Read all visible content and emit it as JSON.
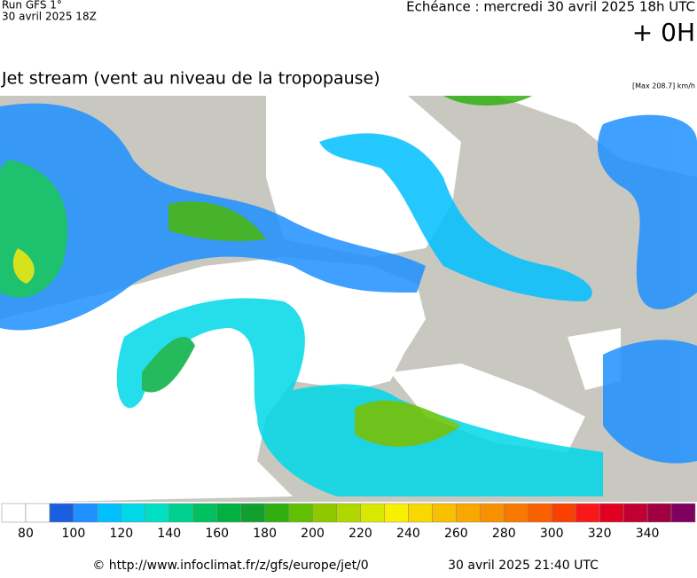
{
  "header": {
    "run": "Run GFS 1°",
    "run_date": "30 avril 2025 18Z",
    "forecast": "Echéance : mercredi 30 avril 2025 18h UTC",
    "offset": "+ 0H"
  },
  "title": "Jet stream (vent au niveau de la tropopause)",
  "max_label": "[Max 208.7] km/h",
  "scale": {
    "range": [
      70,
      360
    ],
    "colors": [
      "#ffffff",
      "#ffffff",
      "#1a5fe0",
      "#1e90ff",
      "#00c0ff",
      "#00d8e8",
      "#00e0c0",
      "#00d090",
      "#00c060",
      "#00b040",
      "#10a030",
      "#30b010",
      "#60c000",
      "#90c800",
      "#b0d800",
      "#d8e800",
      "#f8f000",
      "#f8d800",
      "#f8c000",
      "#f8a800",
      "#f89000",
      "#f87800",
      "#f86000",
      "#f84000",
      "#f81818",
      "#e00020",
      "#c00030",
      "#a00040",
      "#800060"
    ],
    "ticks": [
      80,
      100,
      120,
      140,
      160,
      180,
      200,
      220,
      240,
      260,
      280,
      300,
      320,
      340
    ]
  },
  "footer": {
    "credit": "© http://www.infoclimat.fr/z/gfs/europe/jet/0",
    "timestamp": "30 avril 2025 21:40 UTC"
  }
}
